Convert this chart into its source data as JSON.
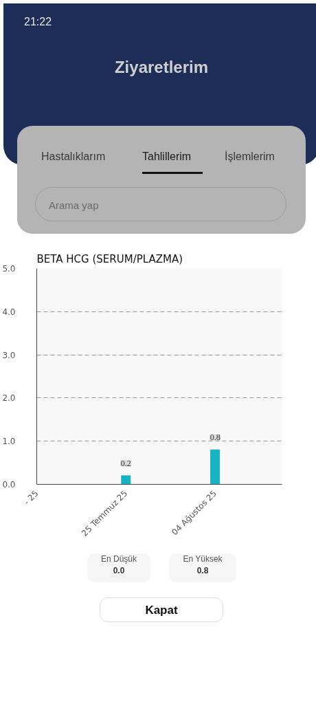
{
  "chart_data": {
    "type": "bar",
    "title": "BETA HCG (SERUM/PLAZMA)",
    "categories": [
      "- 25",
      "25 Temmuz 25",
      "04 Ağustos 25"
    ],
    "values": [
      null,
      0.2,
      0.8
    ],
    "color": "#17b3c3",
    "data_labels": true,
    "ylim": [
      0,
      5
    ],
    "yticks": [
      {
        "value": 0,
        "label": "0.0"
      },
      {
        "value": 1,
        "label": "1.0"
      },
      {
        "value": 2,
        "label": "2.0"
      },
      {
        "value": 3,
        "label": "3.0"
      },
      {
        "value": 4,
        "label": "4.0"
      },
      {
        "value": 5,
        "label": "5.0"
      }
    ],
    "grid": "y",
    "annotations": [
      "21:22",
      "Ziyaretlerim",
      "Hastalıklarım",
      "Tahlillerim",
      "İşlemlerim",
      "Arama yap",
      "En Düşük",
      "0.0",
      "En Yüksek",
      "0.8",
      "Kapat"
    ]
  }
}
